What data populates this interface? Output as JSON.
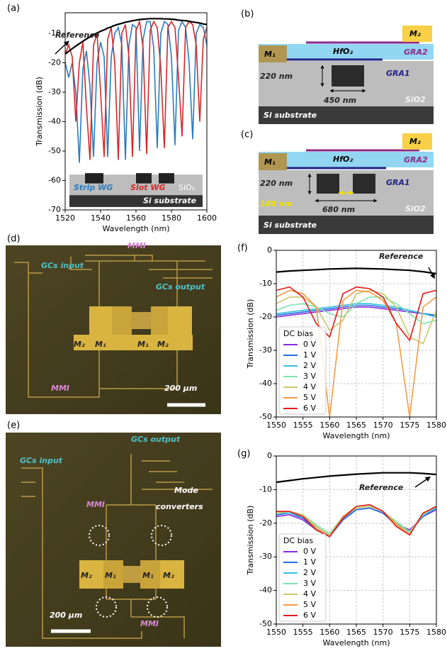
{
  "chart_data": [
    {
      "type": "line",
      "panel": "(a)",
      "xlabel": "Wavelength (nm)",
      "ylabel": "Transmission (dB)",
      "x": [
        1520,
        1522,
        1524,
        1526,
        1528,
        1530,
        1532,
        1534,
        1536,
        1538,
        1540,
        1542,
        1544,
        1546,
        1548,
        1550,
        1552,
        1554,
        1556,
        1558,
        1560,
        1562,
        1564,
        1566,
        1568,
        1570,
        1572,
        1574,
        1576,
        1578,
        1580,
        1582,
        1584,
        1586,
        1588,
        1590,
        1592,
        1594,
        1596,
        1598,
        1600
      ],
      "series": [
        {
          "name": "Reference",
          "color": "#000000",
          "values": [
            -17,
            -16.1,
            -15.2,
            -14.3,
            -13.5,
            -12.7,
            -11.9,
            -11.2,
            -10.5,
            -9.9,
            -9.3,
            -8.8,
            -8.2,
            -7.8,
            -7.3,
            -6.9,
            -6.6,
            -6.2,
            -6,
            -5.7,
            -5.5,
            -5.3,
            -5.2,
            -5.1,
            -5,
            -5,
            -5,
            -5,
            -5.1,
            -5.1,
            -5.2,
            -5.3,
            -5.5,
            -5.6,
            -5.7,
            -5.9,
            -6.1,
            -6.3,
            -6.5,
            -6.8,
            -7
          ]
        },
        {
          "name": "Strip WG",
          "color": "#2a7bbf",
          "values": [
            -20,
            -25,
            -20,
            -30,
            -54,
            -22,
            -16,
            -28,
            -52,
            -20,
            -13,
            -18,
            -52,
            -18,
            -10,
            -8,
            -14,
            -53,
            -14,
            -7,
            -8,
            -50,
            -12,
            -6,
            -6,
            -15,
            -49,
            -10,
            -6,
            -7,
            -18,
            -48,
            -9,
            -6,
            -8,
            -20,
            -46,
            -10,
            -7,
            -8,
            -14
          ]
        },
        {
          "name": "Slot WG",
          "color": "#d62728",
          "values": [
            -17,
            -14,
            -18,
            -40,
            -20,
            -13,
            -35,
            -53,
            -14,
            -10,
            -30,
            -52,
            -12,
            -8,
            -20,
            -53,
            -10,
            -7,
            -18,
            -52,
            -9,
            -6,
            -15,
            -51,
            -9,
            -6,
            -8,
            -22,
            -49,
            -8,
            -6,
            -8,
            -25,
            -45,
            -8,
            -6,
            -7,
            -14,
            -40,
            -12,
            -8
          ]
        }
      ],
      "inset_labels": [
        "SiO₂",
        "Si substrate"
      ],
      "xlim": [
        1520,
        1600
      ],
      "ylim": [
        -70,
        -3
      ],
      "xticks": [
        1520,
        1540,
        1560,
        1580,
        1600
      ],
      "yticks": [
        -70,
        -60,
        -50,
        -40,
        -30,
        -20,
        -10
      ],
      "grid": false
    },
    {
      "type": "line",
      "panel": "(f)",
      "xlabel": "Wavelength (nm)",
      "ylabel": "Transmission (dB)",
      "legend_title": "DC bias",
      "legend": "lower left",
      "x": [
        1550,
        1552.5,
        1555,
        1557.5,
        1560,
        1562.5,
        1565,
        1567.5,
        1570,
        1572.5,
        1575,
        1577.5,
        1580
      ],
      "series": [
        {
          "name": "Reference",
          "color": "#000000",
          "values": [
            -6.5,
            -6.2,
            -6,
            -5.8,
            -5.6,
            -5.5,
            -5.4,
            -5.5,
            -5.6,
            -5.8,
            -6,
            -6.4,
            -7
          ]
        },
        {
          "name": "0 V",
          "color": "#8a2be2",
          "values": [
            -20,
            -19.5,
            -19,
            -18.5,
            -18,
            -17.5,
            -17,
            -17,
            -17.5,
            -18,
            -18.5,
            -19,
            -19.5
          ]
        },
        {
          "name": "1 V",
          "color": "#1f6fe0",
          "values": [
            -19.5,
            -19,
            -18.5,
            -18,
            -17.5,
            -17,
            -16.5,
            -16.5,
            -17,
            -17.5,
            -18,
            -19,
            -19.5
          ]
        },
        {
          "name": "2 V",
          "color": "#35c0e0",
          "values": [
            -19,
            -18.5,
            -18,
            -17.5,
            -17,
            -16.5,
            -16,
            -16,
            -16.5,
            -17,
            -18,
            -19,
            -20
          ]
        },
        {
          "name": "3 V",
          "color": "#7fe3b0",
          "values": [
            -18,
            -16.5,
            -16,
            -17,
            -19,
            -20,
            -16,
            -14,
            -14,
            -16,
            -19,
            -22,
            -21
          ]
        },
        {
          "name": "4 V",
          "color": "#c9c76a",
          "values": [
            -16,
            -14,
            -14,
            -17,
            -24,
            -21,
            -13,
            -12,
            -13,
            -17,
            -26,
            -28,
            -18
          ]
        },
        {
          "name": "5 V",
          "color": "#f59a45",
          "values": [
            -14,
            -12,
            -13,
            -17,
            -50,
            -15,
            -12,
            -12.5,
            -15,
            -22,
            -50,
            -17,
            -14
          ]
        },
        {
          "name": "6 V",
          "color": "#e3191c",
          "values": [
            -12,
            -11,
            -14,
            -22,
            -26,
            -13,
            -11,
            -11.5,
            -14,
            -22,
            -27,
            -13,
            -12
          ]
        }
      ],
      "xlim": [
        1550,
        1580
      ],
      "ylim": [
        -50,
        0
      ],
      "xticks": [
        1550,
        1555,
        1560,
        1565,
        1570,
        1575,
        1580
      ],
      "yticks": [
        -50,
        -40,
        -30,
        -20,
        -10,
        0
      ],
      "grid": true
    },
    {
      "type": "line",
      "panel": "(g)",
      "xlabel": "Wavelength (nm)",
      "ylabel": "Transmission (dB)",
      "legend_title": "DC bias",
      "legend": "lower left",
      "x": [
        1550,
        1552.5,
        1555,
        1557.5,
        1560,
        1562.5,
        1565,
        1567.5,
        1570,
        1572.5,
        1575,
        1577.5,
        1580
      ],
      "series": [
        {
          "name": "Reference",
          "color": "#000000",
          "values": [
            -7.8,
            -7.3,
            -6.8,
            -6.4,
            -6,
            -5.7,
            -5.4,
            -5.2,
            -5,
            -5,
            -5,
            -5.2,
            -5.5
          ]
        },
        {
          "name": "0 V",
          "color": "#8a2be2",
          "values": [
            -18,
            -17.5,
            -19,
            -22,
            -23.5,
            -19,
            -16,
            -15.5,
            -17,
            -20,
            -22,
            -18,
            -16
          ]
        },
        {
          "name": "1 V",
          "color": "#1f6fe0",
          "values": [
            -17.5,
            -17,
            -18.5,
            -22,
            -24,
            -19,
            -16,
            -15.5,
            -17,
            -20.5,
            -22.5,
            -18,
            -15.5
          ]
        },
        {
          "name": "2 V",
          "color": "#35c0e0",
          "values": [
            -17,
            -17,
            -18,
            -21,
            -23.5,
            -18.5,
            -15.5,
            -15,
            -16.5,
            -20,
            -23,
            -17.5,
            -15.5
          ]
        },
        {
          "name": "3 V",
          "color": "#7fe3b0",
          "values": [
            -17,
            -16.5,
            -17.5,
            -20.5,
            -23,
            -18,
            -15.5,
            -15,
            -16.5,
            -19.5,
            -22.5,
            -17.5,
            -15
          ]
        },
        {
          "name": "4 V",
          "color": "#c9c76a",
          "values": [
            -17,
            -16.5,
            -17.5,
            -21,
            -23.5,
            -18,
            -15.5,
            -15,
            -16.5,
            -20,
            -23,
            -17,
            -15
          ]
        },
        {
          "name": "5 V",
          "color": "#f59a45",
          "values": [
            -16.5,
            -16.5,
            -18,
            -21.5,
            -24,
            -18,
            -15,
            -14.5,
            -16.5,
            -20.5,
            -23.5,
            -17,
            -15
          ]
        },
        {
          "name": "6 V",
          "color": "#e3191c",
          "values": [
            -16.5,
            -16.5,
            -18,
            -22,
            -24,
            -18.5,
            -15,
            -14.5,
            -16.5,
            -21,
            -23.5,
            -17,
            -15
          ]
        }
      ],
      "xlim": [
        1550,
        1580
      ],
      "ylim": [
        -50,
        0
      ],
      "xticks": [
        1550,
        1555,
        1560,
        1565,
        1570,
        1575,
        1580
      ],
      "yticks": [
        -50,
        -40,
        -30,
        -20,
        -10,
        0
      ],
      "grid": true
    }
  ],
  "panels": {
    "b": {
      "label": "(b)",
      "m1": "M₁",
      "m2": "M₂",
      "hfo2": "HfO₂",
      "gra2": "GRA2",
      "gra1": "GRA1",
      "height": "220 nm",
      "width": "450 nm",
      "sio2": "SiO2",
      "substrate": "Si substrate"
    },
    "c": {
      "label": "(c)",
      "m1": "M₁",
      "m2": "M₂",
      "hfo2": "HfO₂",
      "gra2": "GRA2",
      "gra1": "GRA1",
      "height": "220 nm",
      "gap": "180 nm",
      "width": "680 nm",
      "sio2": "SiO2",
      "substrate": "Si substrate"
    },
    "d": {
      "label": "(d)",
      "mmi_top": "MMI",
      "gc_in": "GCs input",
      "gc_out": "GCs output",
      "pads": [
        "M₂",
        "M₁",
        "M₁",
        "M₂"
      ],
      "scale": "200 μm",
      "mmi_bottom": "MMI"
    },
    "e": {
      "label": "(e)",
      "gc_out": "GCs output",
      "gc_in": "GCs input",
      "mmi_top": "MMI",
      "mode": [
        "Mode",
        "converters"
      ],
      "pads": [
        "M₂",
        "M₁",
        "M₁",
        "M₂"
      ],
      "scale": "200 μm",
      "mmi_bottom": "MMI"
    }
  }
}
